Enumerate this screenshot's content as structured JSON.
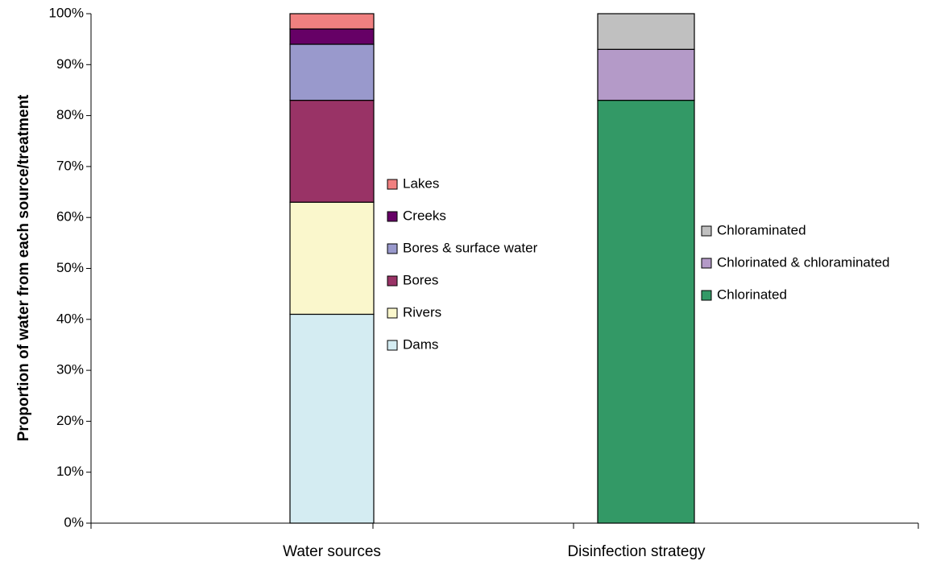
{
  "chart_data": {
    "type": "stacked_bar",
    "y_label": "Proportion of water from each source/treatment",
    "categories": [
      "Water sources",
      "Disinfection strategy"
    ],
    "series": [
      {
        "name": "Dams",
        "color": "#d4ecf2",
        "values": [
          41,
          null
        ]
      },
      {
        "name": "Rivers",
        "color": "#faf7cc",
        "values": [
          22,
          null
        ]
      },
      {
        "name": "Bores",
        "color": "#993366",
        "values": [
          20,
          null
        ]
      },
      {
        "name": "Bores & surface water",
        "color": "#9999cc",
        "values": [
          11,
          null
        ]
      },
      {
        "name": "Creeks",
        "color": "#660066",
        "values": [
          3,
          null
        ]
      },
      {
        "name": "Lakes",
        "color": "#f08080",
        "values": [
          3,
          null
        ]
      },
      {
        "name": "Chlorinated",
        "color": "#339966",
        "values": [
          null,
          83
        ]
      },
      {
        "name": "Chlorinated & chloraminated",
        "color": "#b49ac8",
        "values": [
          null,
          10
        ]
      },
      {
        "name": "Chloraminated",
        "color": "#c0c0c0",
        "values": [
          null,
          7
        ]
      }
    ],
    "ylim": [
      0,
      100
    ],
    "yticks": [
      {
        "value": 0,
        "label": "0%"
      },
      {
        "value": 10,
        "label": "10%"
      },
      {
        "value": 20,
        "label": "20%"
      },
      {
        "value": 30,
        "label": "30%"
      },
      {
        "value": 40,
        "label": "40%"
      },
      {
        "value": 50,
        "label": "50%"
      },
      {
        "value": 60,
        "label": "60%"
      },
      {
        "value": 70,
        "label": "70%"
      },
      {
        "value": 80,
        "label": "80%"
      },
      {
        "value": 90,
        "label": "90%"
      },
      {
        "value": 100,
        "label": "100%"
      }
    ]
  }
}
